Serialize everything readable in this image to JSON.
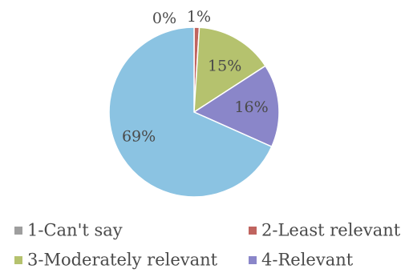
{
  "chart_data": {
    "type": "pie",
    "title": "",
    "slices": [
      {
        "label": "1-Can't say",
        "value": 0,
        "value_label": "0%",
        "color": "#9e9e9e"
      },
      {
        "label": "2-Least relevant",
        "value": 1,
        "value_label": "1%",
        "color": "#c0645f"
      },
      {
        "label": "3-Moderately relevant",
        "value": 15,
        "value_label": "15%",
        "color": "#b5c26e"
      },
      {
        "label": "4-Relevant",
        "value": 16,
        "value_label": "16%",
        "color": "#8a86c9"
      },
      {
        "label": "",
        "value": 69,
        "value_label": "69%",
        "color": "#8bc3e2"
      }
    ],
    "legend": {
      "position": "bottom",
      "entries": [
        "1-Can't say",
        "2-Least relevant",
        "3-Moderately relevant",
        "4-Relevant"
      ]
    }
  }
}
